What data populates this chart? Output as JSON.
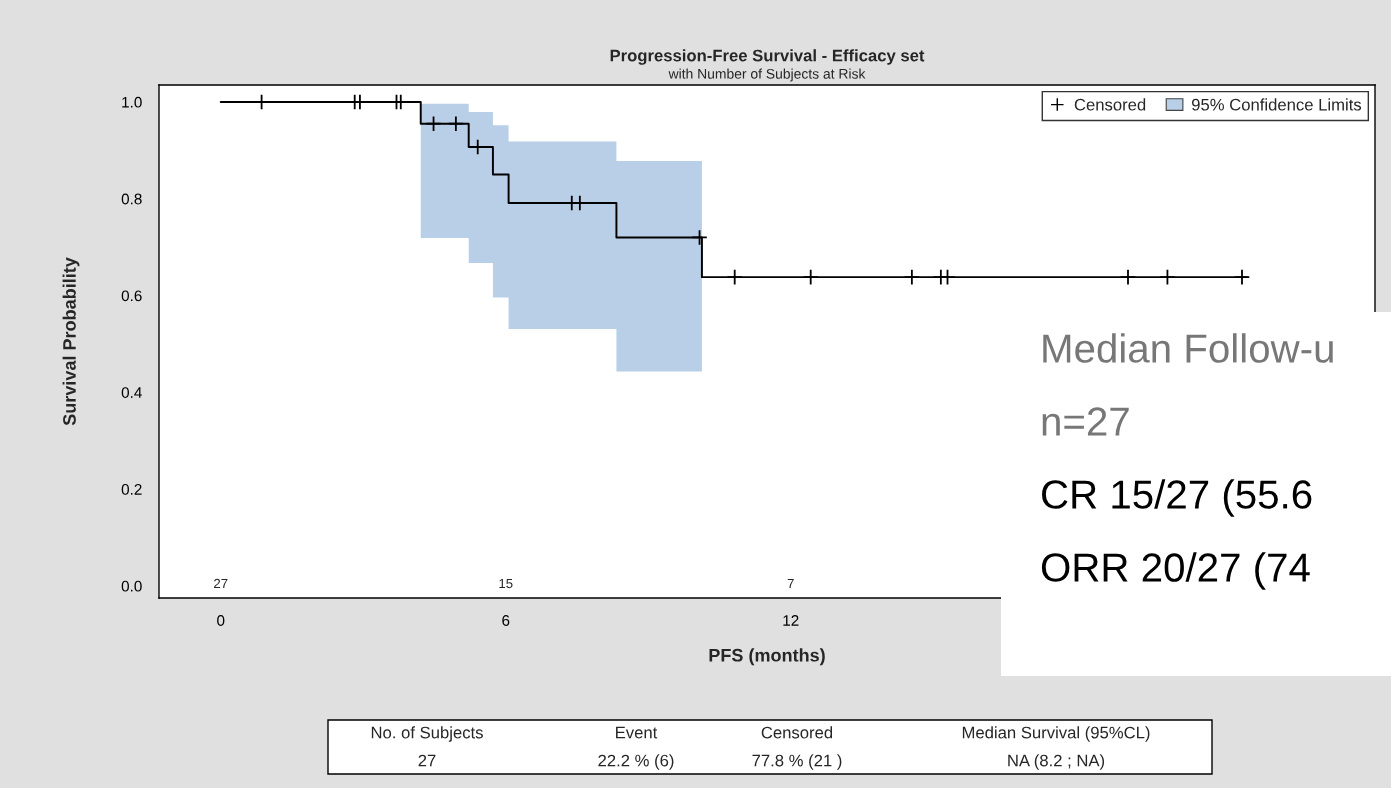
{
  "chart_data": {
    "type": "line",
    "title": "Progression-Free Survival - Efficacy set",
    "subtitle": "with Number of Subjects at Risk",
    "xlabel": "PFS (months)",
    "ylabel": "Survival Probability",
    "xlim": [
      -1.3,
      24.3
    ],
    "ylim": [
      -0.025,
      1.035
    ],
    "xticks": [
      0,
      6,
      12
    ],
    "yticks": [
      {
        "value": 0.0,
        "label": "0.0"
      },
      {
        "value": 0.2,
        "label": "0.2"
      },
      {
        "value": 0.4,
        "label": "0.4"
      },
      {
        "value": 0.6,
        "label": "0.6"
      },
      {
        "value": 0.8,
        "label": "0.8"
      },
      {
        "value": 1.0,
        "label": "1.0"
      }
    ],
    "grid": false,
    "legend": "top right",
    "series": [
      {
        "color": "#000000",
        "x": [
          0,
          4.21,
          4.21,
          5.22,
          5.22,
          5.73,
          5.73,
          6.06,
          6.06,
          8.33,
          8.33,
          10.13,
          10.13,
          21.6
        ],
        "values": [
          1.0,
          1.0,
          0.955,
          0.955,
          0.907,
          0.907,
          0.85,
          0.85,
          0.791,
          0.791,
          0.72,
          0.72,
          0.638,
          0.638
        ],
        "lower": [
          null,
          null,
          0.719,
          0.719,
          0.667,
          0.667,
          0.596,
          0.596,
          0.531,
          0.531,
          0.443,
          0.443,
          null,
          null
        ],
        "upper": [
          null,
          null,
          0.996,
          0.996,
          0.979,
          0.979,
          0.952,
          0.952,
          0.918,
          0.918,
          0.878,
          0.878,
          null,
          null
        ]
      },
      {
        "type": "scatter",
        "name": "Censored",
        "color": "#000000",
        "marker": "cross",
        "x": [
          0.86,
          2.82,
          2.93,
          3.7,
          3.79,
          4.48,
          4.95,
          5.41,
          7.39,
          7.56,
          10.08,
          10.82,
          12.42,
          14.55,
          15.16,
          15.3,
          19.1,
          19.93,
          21.5
        ],
        "values": [
          1.0,
          1.0,
          1.0,
          1.0,
          1.0,
          0.955,
          0.955,
          0.907,
          0.791,
          0.791,
          0.72,
          0.638,
          0.638,
          0.638,
          0.638,
          0.638,
          0.638,
          0.638,
          0.638
        ]
      }
    ],
    "annotations": [
      "95% Confidence Limits",
      "27",
      "15",
      "7",
      "Median Follow-u",
      "n=27",
      "CR 15/27 (55.6",
      "ORR 20/27 (74",
      "No. of Subjects",
      "Event",
      "Censored",
      "Median Survival (95%CL)",
      "27",
      "22.2 % (6)",
      "77.8 % (21 )",
      "NA (8.2 ; NA)"
    ]
  }
}
